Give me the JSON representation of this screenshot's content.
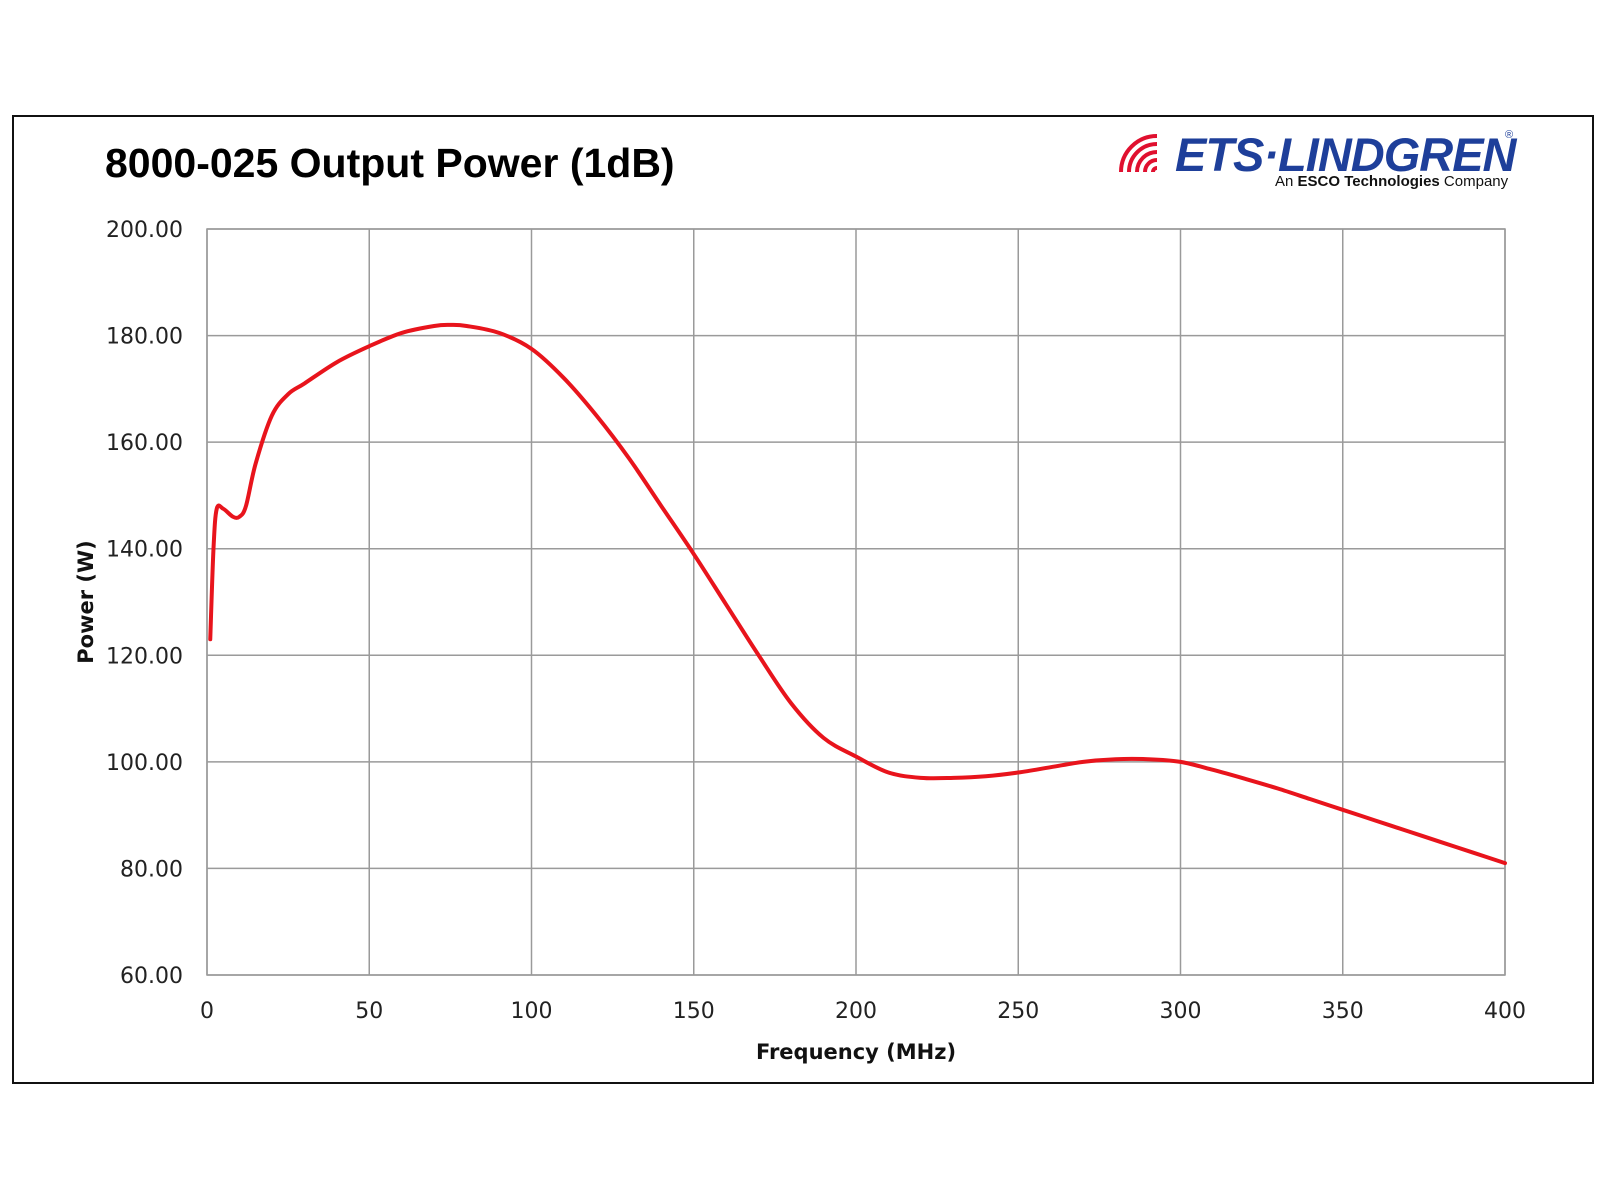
{
  "header": {
    "title": "8000-025 Output Power (1dB)"
  },
  "logo": {
    "name": "ETS·LINDGREN",
    "registered": "®",
    "tagline_prefix": "An ",
    "tagline_brand": "ESCO Technologies",
    "tagline_suffix": " Company",
    "primary_color": "#1e3f9a",
    "accent_color": "#e0102f"
  },
  "chart_data": {
    "type": "line",
    "title": "8000-025 Output Power (1dB)",
    "xlabel": "Frequency (MHz)",
    "ylabel": "Power (W)",
    "xlim": [
      0,
      400
    ],
    "ylim": [
      60,
      200
    ],
    "x_ticks": [
      "0",
      "50",
      "100",
      "150",
      "200",
      "250",
      "300",
      "350",
      "400"
    ],
    "y_ticks": [
      "60.00",
      "80.00",
      "100.00",
      "120.00",
      "140.00",
      "160.00",
      "180.00",
      "200.00"
    ],
    "grid": true,
    "legend": "none",
    "series": [
      {
        "color": "#e8141c",
        "x": [
          1,
          2,
          3,
          5,
          8,
          10,
          12,
          15,
          20,
          25,
          30,
          40,
          50,
          60,
          70,
          75,
          80,
          90,
          100,
          110,
          120,
          130,
          140,
          150,
          160,
          170,
          180,
          190,
          200,
          210,
          220,
          230,
          240,
          250,
          260,
          270,
          280,
          290,
          300,
          310,
          320,
          330,
          340,
          350,
          360,
          370,
          380,
          390,
          400
        ],
        "y": [
          123,
          140,
          147.5,
          147.5,
          146,
          146,
          148,
          156,
          165,
          169,
          171,
          175,
          178,
          180.5,
          181.8,
          182,
          181.8,
          180.5,
          177.5,
          172,
          165,
          157,
          148,
          139,
          129.5,
          120,
          111,
          104.5,
          101,
          98,
          97,
          97,
          97.3,
          98,
          99,
          100,
          100.5,
          100.5,
          100,
          98.5,
          96.8,
          95,
          93,
          91,
          89,
          87,
          85,
          83,
          81
        ]
      }
    ]
  }
}
